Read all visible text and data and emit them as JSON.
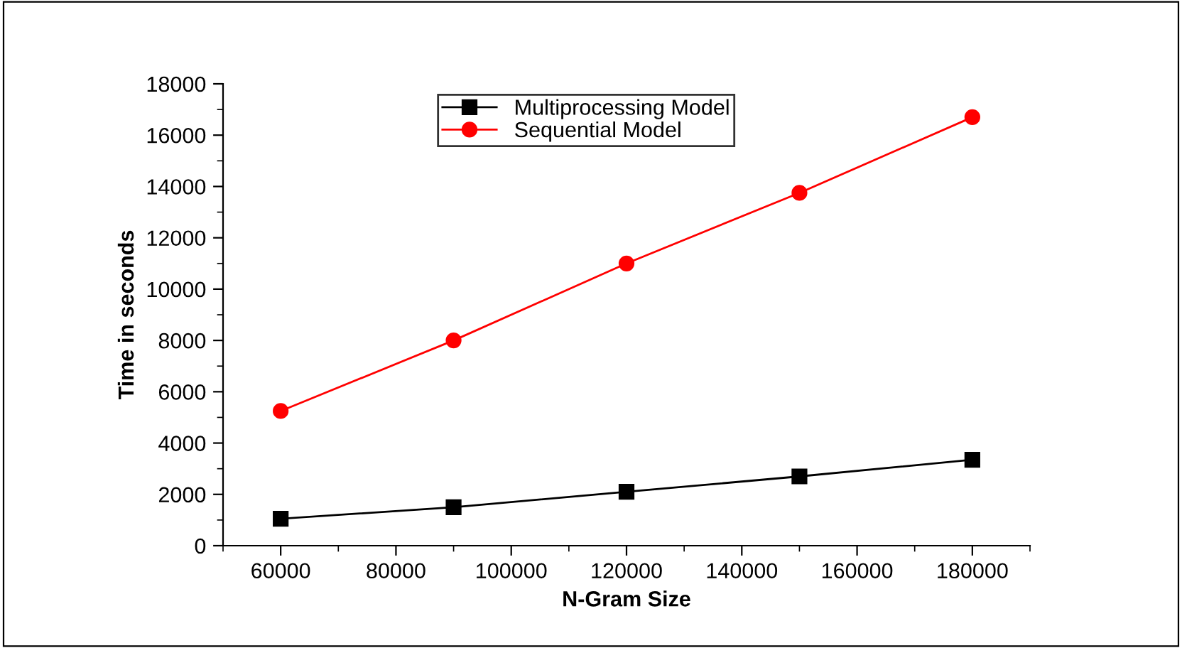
{
  "chart_data": {
    "type": "line",
    "xlabel": "N-Gram Size",
    "ylabel": "Time in seconds",
    "x": [
      60000,
      90000,
      120000,
      150000,
      180000
    ],
    "series": [
      {
        "name": "Multiprocessing Model",
        "color": "#000000",
        "marker": "square",
        "values": [
          1050,
          1500,
          2100,
          2700,
          3350
        ]
      },
      {
        "name": "Sequential Model",
        "color": "#ff0000",
        "marker": "circle",
        "values": [
          5250,
          8000,
          11000,
          13750,
          16700
        ]
      }
    ],
    "xlim": [
      50000,
      190000
    ],
    "xticks": [
      60000,
      80000,
      100000,
      120000,
      140000,
      160000,
      180000
    ],
    "ylim": [
      0,
      18000
    ],
    "yticks": [
      0,
      2000,
      4000,
      6000,
      8000,
      10000,
      12000,
      14000,
      16000,
      18000
    ],
    "grid": false,
    "legend": "top",
    "line_style": "solid"
  }
}
